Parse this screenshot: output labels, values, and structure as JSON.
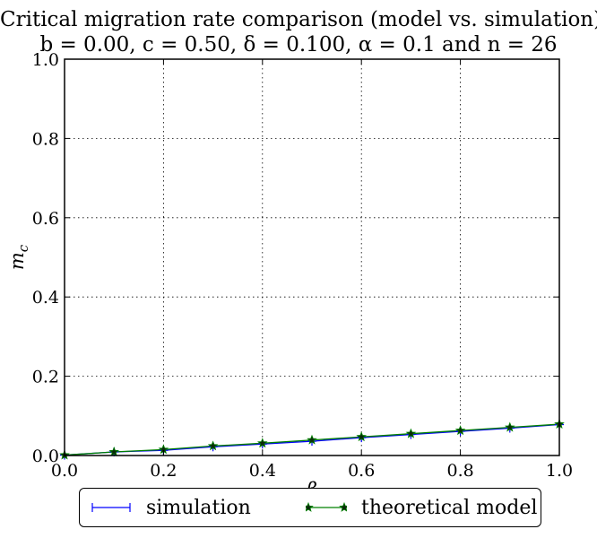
{
  "chart_data": {
    "type": "line",
    "title": "Critical migration rate comparison (model vs. simulation)",
    "subtitle": "b = 0.00, c = 0.50, δ = 0.100, α = 0.1 and n = 26",
    "xlabel": "β",
    "ylabel": "m_c",
    "xlim": [
      0.0,
      1.0
    ],
    "ylim": [
      0.0,
      1.0
    ],
    "xticks": [
      "0.0",
      "0.2",
      "0.4",
      "0.6",
      "0.8",
      "1.0"
    ],
    "yticks": [
      "0.0",
      "0.2",
      "0.4",
      "0.6",
      "0.8",
      "1.0"
    ],
    "grid": true,
    "legend_position": "bottom-center",
    "series": [
      {
        "name": "simulation",
        "color": "#0000ff",
        "marker": "plus",
        "x": [
          0.0,
          0.1,
          0.2,
          0.3,
          0.4,
          0.5,
          0.6,
          0.7,
          0.8,
          0.9,
          1.0
        ],
        "y": [
          0.001,
          0.009,
          0.013,
          0.022,
          0.029,
          0.036,
          0.045,
          0.053,
          0.061,
          0.069,
          0.078
        ]
      },
      {
        "name": "theoretical model",
        "color": "#008000",
        "marker": "star",
        "x": [
          0.0,
          0.1,
          0.2,
          0.3,
          0.4,
          0.5,
          0.6,
          0.7,
          0.8,
          0.9,
          1.0
        ],
        "y": [
          0.001,
          0.009,
          0.015,
          0.024,
          0.031,
          0.039,
          0.047,
          0.055,
          0.063,
          0.071,
          0.079
        ]
      }
    ]
  }
}
